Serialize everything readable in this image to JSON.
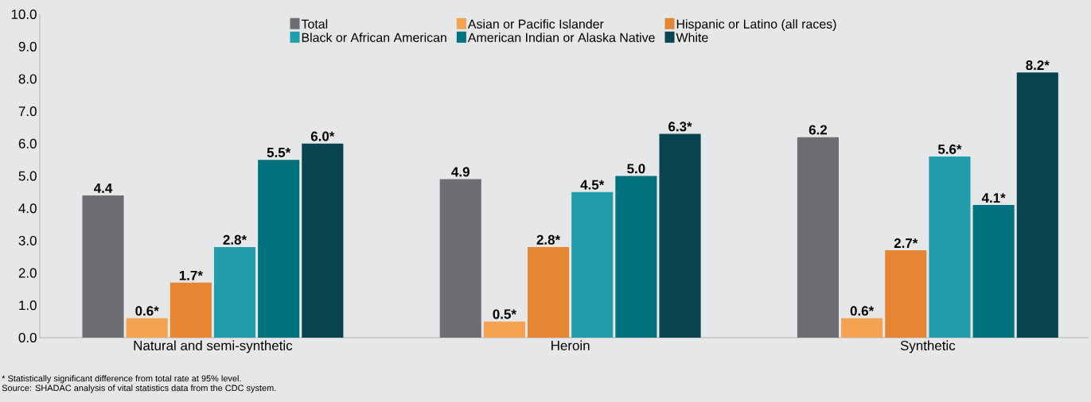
{
  "chart_data": {
    "type": "bar",
    "categories": [
      "Natural and semi-synthetic",
      "Heroin",
      "Synthetic"
    ],
    "series": [
      {
        "name": "Total",
        "color": "#6d6e71",
        "values": [
          4.4,
          4.9,
          6.2
        ],
        "value_labels": [
          "4.4",
          "4.9",
          "6.2"
        ]
      },
      {
        "name": "Asian or Pacific Islander",
        "color": "#f3a352",
        "values": [
          0.6,
          0.5,
          0.6
        ],
        "value_labels": [
          "0.6*",
          "0.5*",
          "0.6*"
        ]
      },
      {
        "name": "Hispanic or Latino (all races)",
        "color": "#e68532",
        "values": [
          1.7,
          2.8,
          2.7
        ],
        "value_labels": [
          "1.7*",
          "2.8*",
          "2.7*"
        ]
      },
      {
        "name": "Black or African American",
        "color": "#219dab",
        "values": [
          2.8,
          4.5,
          5.6
        ],
        "value_labels": [
          "2.8*",
          "4.5*",
          "5.6*"
        ]
      },
      {
        "name": "American Indian or Alaska Native",
        "color": "#00727d",
        "values": [
          5.5,
          5.0,
          4.1
        ],
        "value_labels": [
          "5.5*",
          "5.0",
          "4.1*"
        ]
      },
      {
        "name": "White",
        "color": "#07444f",
        "values": [
          6.0,
          6.3,
          8.2
        ],
        "value_labels": [
          "6.0*",
          "6.3*",
          "8.2*"
        ]
      }
    ],
    "ylim": [
      0,
      10
    ],
    "yticks": [
      {
        "value": 0,
        "label": "0.0"
      },
      {
        "value": 1,
        "label": "1.0"
      },
      {
        "value": 2,
        "label": "2.0"
      },
      {
        "value": 3,
        "label": "3.0"
      },
      {
        "value": 4,
        "label": "4.0"
      },
      {
        "value": 5,
        "label": "5.0"
      },
      {
        "value": 6,
        "label": "6.0"
      },
      {
        "value": 7,
        "label": "7.0"
      },
      {
        "value": 8,
        "label": "8.0"
      },
      {
        "value": 9,
        "label": "9.0"
      },
      {
        "value": 10,
        "label": "10.0"
      }
    ],
    "legend": "top",
    "annotations": [
      "* Statistically significant difference from total rate at 95% level.",
      "Source: SHADAC analysis of vital statistics data from the CDC system."
    ]
  }
}
